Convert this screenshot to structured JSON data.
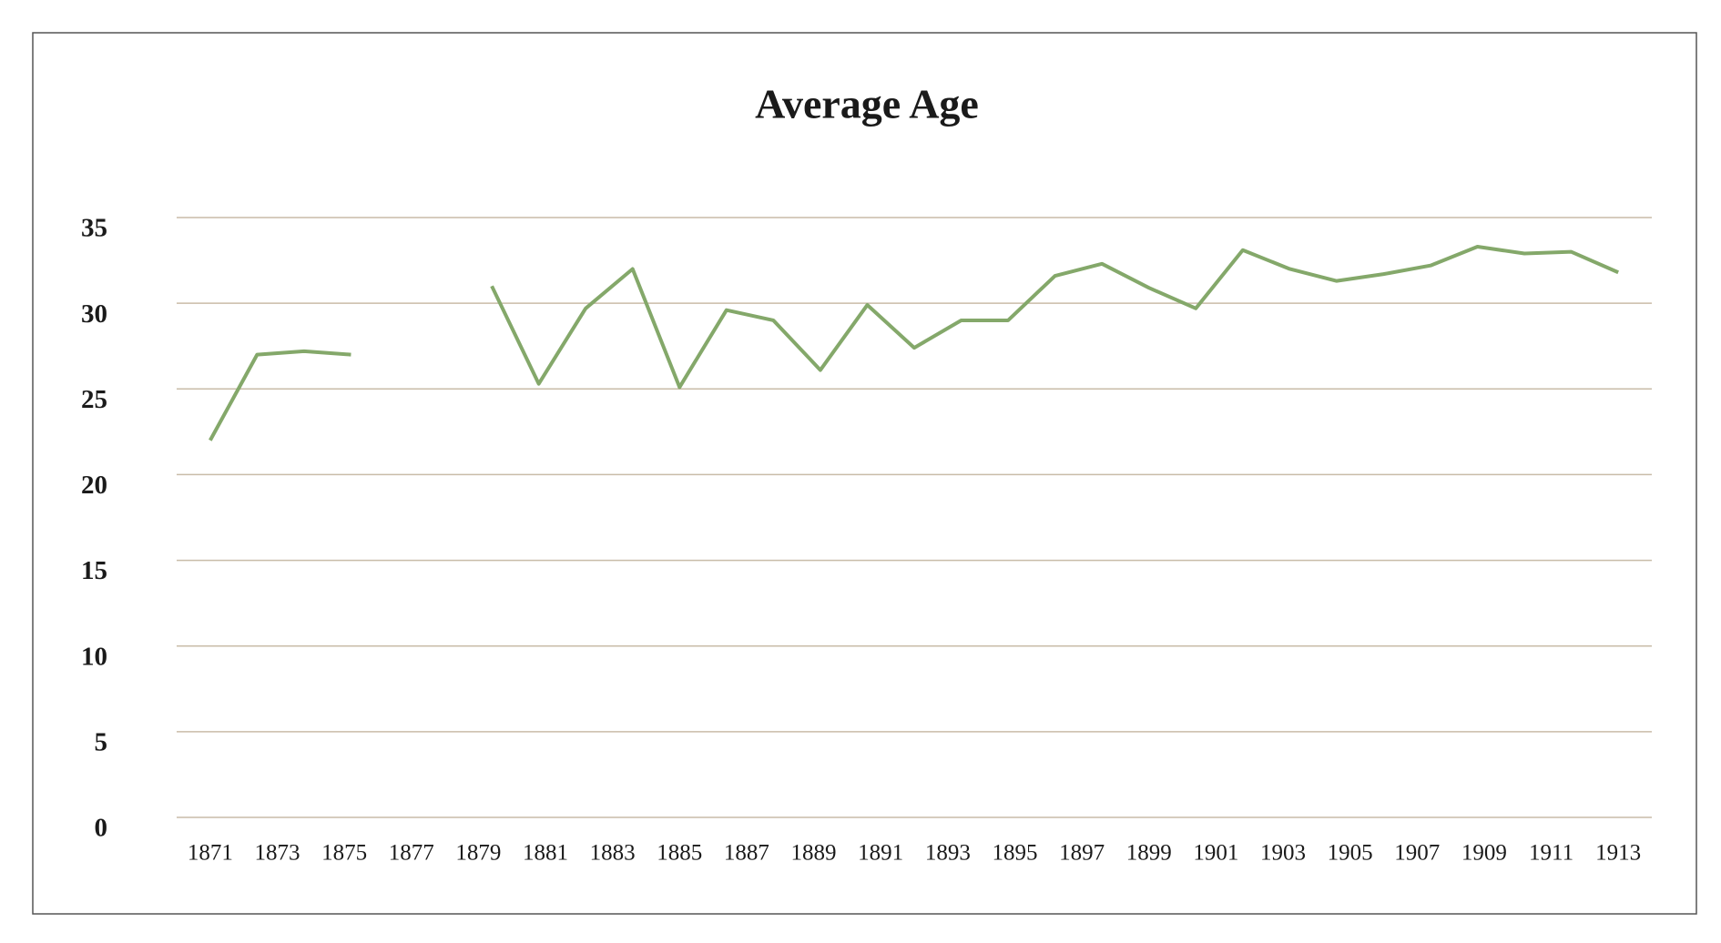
{
  "chart_data": {
    "type": "line",
    "title": "Average Age",
    "x": [
      1871,
      1872.4,
      1873.8,
      1875.2,
      1876.6,
      1878.0,
      1879.4,
      1880.8,
      1882.2,
      1883.6,
      1885.0,
      1886.4,
      1887.8,
      1889.2,
      1890.6,
      1892.0,
      1893.4,
      1894.8,
      1896.2,
      1897.6,
      1899.0,
      1900.4,
      1901.8,
      1903.2,
      1904.6,
      1906.0,
      1907.4,
      1908.8,
      1910.2,
      1911.6,
      1913.0
    ],
    "series": [
      {
        "name": "Average Age",
        "color": "#84a86a",
        "values": [
          22.0,
          27.0,
          27.2,
          27.0,
          null,
          null,
          31.0,
          25.3,
          29.7,
          32.0,
          25.1,
          29.6,
          29.0,
          26.1,
          29.9,
          27.4,
          29.0,
          29.0,
          31.6,
          32.3,
          30.9,
          29.7,
          33.1,
          32.0,
          31.3,
          31.7,
          32.2,
          33.3,
          32.9,
          33.0,
          31.8
        ]
      }
    ],
    "xlim": [
      1870,
      1914
    ],
    "xticks": [
      1871,
      1873,
      1875,
      1877,
      1879,
      1881,
      1883,
      1885,
      1887,
      1889,
      1891,
      1893,
      1895,
      1897,
      1899,
      1901,
      1903,
      1905,
      1907,
      1909,
      1911,
      1913
    ],
    "ylim": [
      0,
      35
    ],
    "yticks": [
      0,
      5,
      10,
      15,
      20,
      25,
      30,
      35
    ],
    "grid": true,
    "grid_color": "#c9bca8"
  }
}
